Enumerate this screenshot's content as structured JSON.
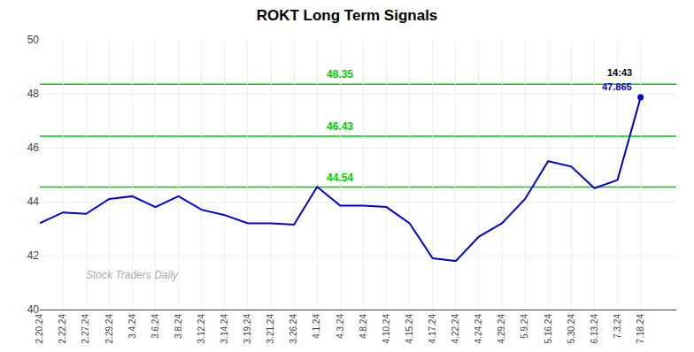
{
  "chart_data": {
    "type": "line",
    "title": "ROKT Long Term Signals",
    "categories": [
      "2.20.24",
      "2.22.24",
      "2.27.24",
      "2.29.24",
      "3.4.24",
      "3.6.24",
      "3.8.24",
      "3.12.24",
      "3.14.24",
      "3.19.24",
      "3.21.24",
      "3.26.24",
      "4.1.24",
      "4.3.24",
      "4.8.24",
      "4.10.24",
      "4.15.24",
      "4.17.24",
      "4.22.24",
      "4.24.24",
      "4.29.24",
      "5.9.24",
      "5.16.24",
      "5.30.24",
      "6.13.24",
      "7.3.24",
      "7.18.24"
    ],
    "values": [
      43.2,
      43.6,
      43.55,
      44.1,
      44.2,
      43.8,
      44.2,
      43.7,
      43.5,
      43.2,
      43.2,
      43.15,
      44.55,
      43.85,
      43.85,
      43.8,
      43.2,
      41.9,
      41.8,
      42.7,
      43.2,
      44.1,
      45.5,
      45.3,
      44.5,
      44.8,
      47.865
    ],
    "color": "#0000cc",
    "ylim": [
      40,
      50
    ],
    "yticks": [
      40,
      42,
      44,
      46,
      48,
      50
    ],
    "grid": true,
    "hlines": {
      "values": [
        44.54,
        46.43,
        48.35
      ],
      "color": "#00cc00"
    },
    "annotations": [
      {
        "text": "14:43",
        "color": "#000000"
      },
      {
        "text": "47.865",
        "color": "#0000cc"
      }
    ],
    "watermark": {
      "text": "Stock Traders Daily",
      "color": "#aaaaaa"
    }
  }
}
